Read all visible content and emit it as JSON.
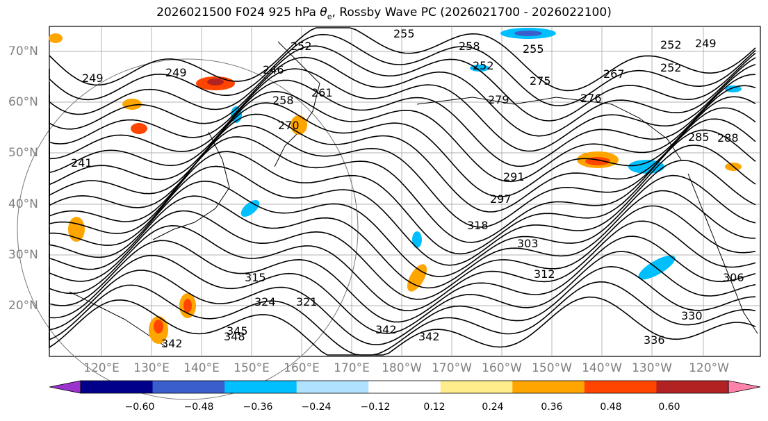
{
  "title": {
    "main": "2026021500 F024 925 hPa ",
    "symbol": "θ",
    "sub": "e",
    "rest": ", Rossby Wave PC (2026021700 - 2026022100)"
  },
  "map": {
    "lat_labels": [
      "70°N",
      "60°N",
      "50°N",
      "40°N",
      "30°N",
      "20°N"
    ],
    "lon_labels": [
      "120°E",
      "130°E",
      "140°E",
      "150°E",
      "160°E",
      "170°E",
      "180°W",
      "170°W",
      "160°W",
      "150°W",
      "140°W",
      "130°W",
      "120°W"
    ],
    "contour_labels": [
      "255",
      "258",
      "255",
      "252",
      "249",
      "252",
      "246",
      "249",
      "252",
      "252",
      "275",
      "267",
      "276",
      "279",
      "258",
      "261",
      "270",
      "249",
      "241",
      "291",
      "297",
      "303",
      "285",
      "288",
      "312",
      "315",
      "324",
      "321",
      "330",
      "336",
      "345",
      "348",
      "342",
      "342",
      "306",
      "318",
      "342"
    ]
  },
  "colorbar": {
    "colors": [
      "#9a32cd",
      "#00008b",
      "#3a5fcd",
      "#00bfff",
      "#b0e2ff",
      "#ffffff",
      "#ffec8b",
      "#ffa500",
      "#ff4500",
      "#b22222",
      "#ff82ab"
    ],
    "tick_labels": [
      "−0.60",
      "−0.48",
      "−0.36",
      "−0.24",
      "−0.12",
      "0.12",
      "0.24",
      "0.36",
      "0.48",
      "0.60"
    ]
  }
}
